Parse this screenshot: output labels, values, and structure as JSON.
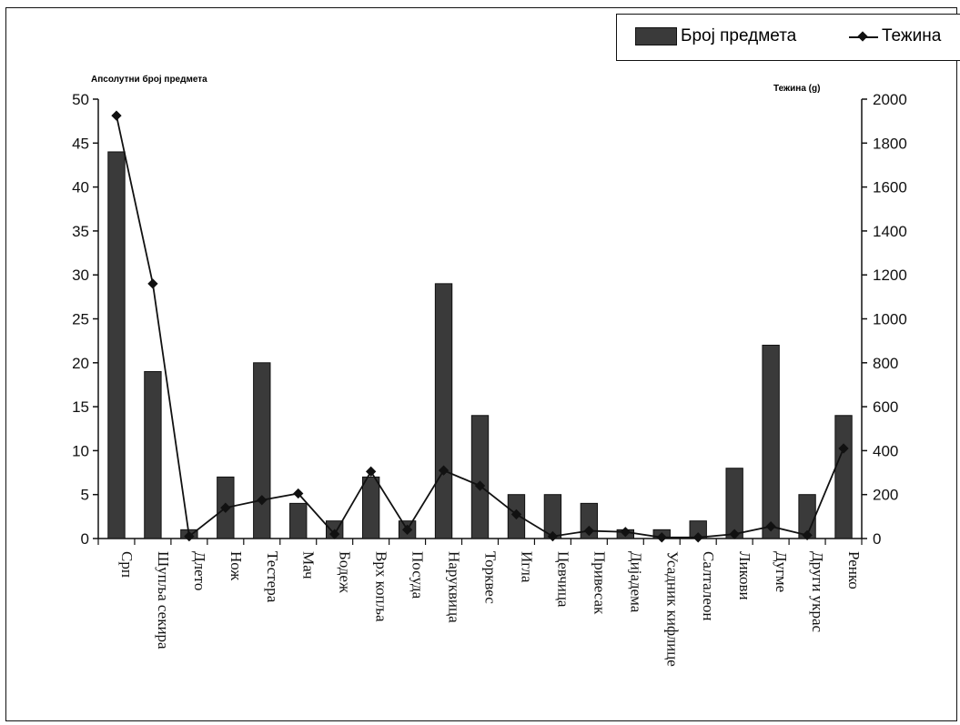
{
  "legend": {
    "bar_label": "Број предмета",
    "line_label": "Тежина"
  },
  "chart_data": {
    "type": "bar+line",
    "title": "",
    "y_left_label": "Апсолутни број предмета",
    "y_right_label": "Тежина (g)",
    "y_left_range": [
      0,
      50
    ],
    "y_left_ticks": [
      0,
      5,
      10,
      15,
      20,
      25,
      30,
      35,
      40,
      45,
      50
    ],
    "y_right_range": [
      0,
      2000
    ],
    "y_right_ticks": [
      0,
      200,
      400,
      600,
      800,
      1000,
      1200,
      1400,
      1600,
      1800,
      2000
    ],
    "categories": [
      "Срп",
      "Шупља секира",
      "Длето",
      "Нож",
      "Тестера",
      "Мач",
      "Бодеж",
      "Врх копља",
      "Посуда",
      "Наруквица",
      "Торквес",
      "Игла",
      "Цевчица",
      "Привесак",
      "Дијадема",
      "Усадник кифлице",
      "Салталеон",
      "Ликови",
      "Дугме",
      "Други украс",
      "Ренко"
    ],
    "series": [
      {
        "name": "Број предмета",
        "type": "bar",
        "axis": "left",
        "color": "#3a3a3a",
        "values": [
          44,
          19,
          1,
          7,
          20,
          4,
          2,
          7,
          2,
          29,
          14,
          5,
          5,
          4,
          1,
          1,
          2,
          8,
          22,
          5,
          14
        ]
      },
      {
        "name": "Тежина",
        "type": "line",
        "axis": "right",
        "color": "#111111",
        "values": [
          1925,
          1160,
          10,
          140,
          175,
          205,
          20,
          305,
          40,
          310,
          240,
          110,
          10,
          35,
          30,
          5,
          5,
          20,
          55,
          15,
          410
        ]
      }
    ],
    "grid": false,
    "legend_position": "top-right"
  }
}
